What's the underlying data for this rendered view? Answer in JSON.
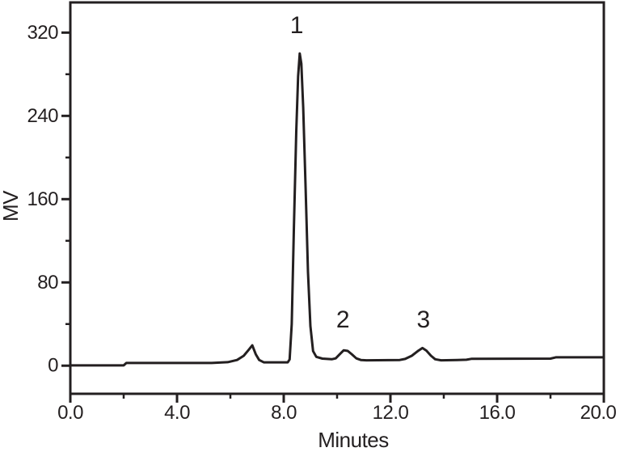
{
  "figure": {
    "background": "#ffffff",
    "ink_color": "#231f20"
  },
  "chart_data": {
    "type": "line",
    "title": "",
    "xlabel": "Minutes",
    "ylabel": "MV",
    "xlim": [
      0,
      20
    ],
    "ylim": [
      -27,
      349
    ],
    "grid": false,
    "legend": "none",
    "x_ticks": {
      "major": [
        0,
        4,
        8,
        12,
        16,
        20
      ],
      "labels": [
        "0.0",
        "4.0",
        "8.0",
        "12.0",
        "16.0",
        "20.0"
      ],
      "minor": [
        2,
        6,
        10,
        14,
        18
      ]
    },
    "y_ticks": {
      "major": [
        0,
        80,
        160,
        240,
        320
      ],
      "labels": [
        "0",
        "80",
        "160",
        "240",
        "320"
      ],
      "minor": [
        40,
        120,
        200,
        280
      ]
    },
    "series": [
      {
        "name": "chromatogram-trace",
        "color": "#231f20",
        "points": [
          [
            0,
            0.3
          ],
          [
            2.0,
            0.3
          ],
          [
            2.1,
            2.6
          ],
          [
            5.3,
            2.6
          ],
          [
            5.9,
            3.4
          ],
          [
            6.25,
            5.5
          ],
          [
            6.5,
            9.5
          ],
          [
            6.68,
            15
          ],
          [
            6.82,
            19.5
          ],
          [
            6.95,
            11
          ],
          [
            7.08,
            5.5
          ],
          [
            7.25,
            3.2
          ],
          [
            8.15,
            3.2
          ],
          [
            8.22,
            6
          ],
          [
            8.3,
            40
          ],
          [
            8.38,
            130
          ],
          [
            8.47,
            225
          ],
          [
            8.54,
            278
          ],
          [
            8.6,
            300
          ],
          [
            8.66,
            290
          ],
          [
            8.73,
            248
          ],
          [
            8.82,
            170
          ],
          [
            8.91,
            90
          ],
          [
            9.0,
            38
          ],
          [
            9.1,
            14
          ],
          [
            9.22,
            8.5
          ],
          [
            9.45,
            6.8
          ],
          [
            9.8,
            6.2
          ],
          [
            9.95,
            7
          ],
          [
            10.1,
            11
          ],
          [
            10.25,
            14.8
          ],
          [
            10.4,
            14.2
          ],
          [
            10.55,
            11
          ],
          [
            10.72,
            7
          ],
          [
            10.9,
            5.4
          ],
          [
            11.1,
            5.2
          ],
          [
            12.35,
            5.5
          ],
          [
            12.55,
            6.5
          ],
          [
            12.8,
            9.5
          ],
          [
            13.05,
            14.5
          ],
          [
            13.2,
            17
          ],
          [
            13.35,
            14.5
          ],
          [
            13.52,
            9.5
          ],
          [
            13.68,
            6.2
          ],
          [
            13.9,
            5.2
          ],
          [
            14.5,
            5.5
          ],
          [
            14.85,
            5.7
          ],
          [
            15.05,
            6.6
          ],
          [
            18.0,
            6.8
          ],
          [
            18.2,
            8.0
          ],
          [
            20,
            8.0
          ]
        ]
      }
    ],
    "annotations": [
      {
        "label": "1",
        "x": 8.48,
        "y": 327
      },
      {
        "label": "2",
        "x": 10.21,
        "y": 44
      },
      {
        "label": "3",
        "x": 13.23,
        "y": 44
      }
    ],
    "peaks": [
      {
        "label": "",
        "retention_min": 6.8,
        "height_mv": 19
      },
      {
        "label": "1",
        "retention_min": 8.6,
        "height_mv": 300
      },
      {
        "label": "2",
        "retention_min": 10.3,
        "height_mv": 15
      },
      {
        "label": "3",
        "retention_min": 13.3,
        "height_mv": 17
      }
    ]
  }
}
